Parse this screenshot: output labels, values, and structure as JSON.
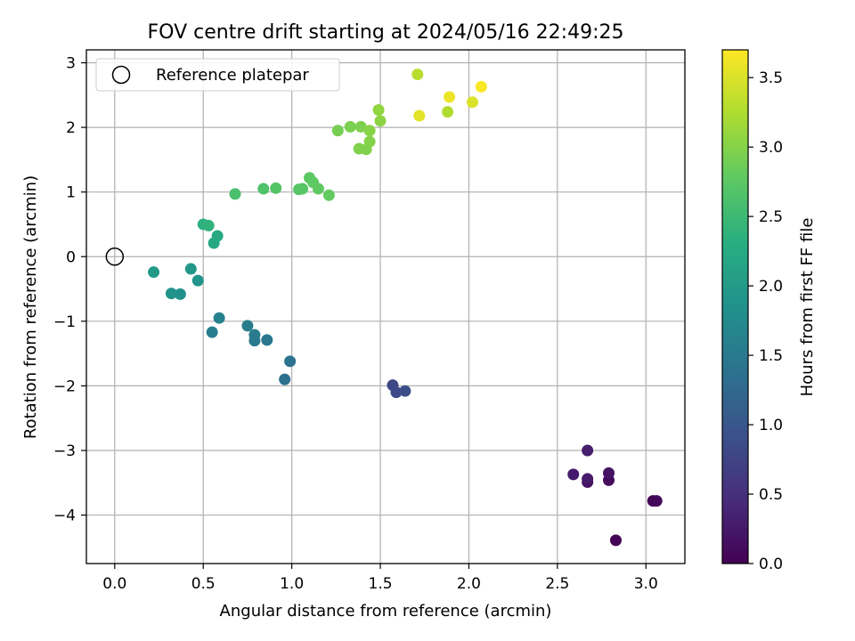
{
  "chart_data": {
    "type": "scatter",
    "title": "FOV centre drift starting at 2024/05/16 22:49:25",
    "xlabel": "Angular distance from reference (arcmin)",
    "ylabel": "Rotation from reference (arcmin)",
    "xlim": [
      -0.16,
      3.22
    ],
    "ylim": [
      -4.75,
      3.2
    ],
    "xticks": [
      0.0,
      0.5,
      1.0,
      1.5,
      2.0,
      2.5,
      3.0
    ],
    "xtick_labels": [
      "0.0",
      "0.5",
      "1.0",
      "1.5",
      "2.0",
      "2.5",
      "3.0"
    ],
    "yticks": [
      3,
      2,
      1,
      0,
      -1,
      -2,
      -3,
      -4
    ],
    "ytick_labels": [
      "3",
      "2",
      "1",
      "0",
      "−1",
      "−2",
      "−3",
      "−4"
    ],
    "grid": true,
    "legend": {
      "placement": "top-left",
      "entries": [
        "Reference platepar"
      ]
    },
    "reference_point": {
      "x": 0.0,
      "y": 0.0
    },
    "colorbar": {
      "label": "Hours from first FF file",
      "colormap": "viridis",
      "range": [
        0.0,
        3.7
      ],
      "ticks": [
        0.0,
        0.5,
        1.0,
        1.5,
        2.0,
        2.5,
        3.0,
        3.5
      ],
      "tick_labels": [
        "0.0",
        "0.5",
        "1.0",
        "1.5",
        "2.0",
        "2.5",
        "3.0",
        "3.5"
      ]
    },
    "points": [
      {
        "x": 2.83,
        "y": -4.39,
        "c": 0.02
      },
      {
        "x": 3.04,
        "y": -3.78,
        "c": 0.05
      },
      {
        "x": 3.06,
        "y": -3.78,
        "c": 0.07
      },
      {
        "x": 2.79,
        "y": -3.46,
        "c": 0.12
      },
      {
        "x": 2.67,
        "y": -3.49,
        "c": 0.17
      },
      {
        "x": 2.79,
        "y": -3.35,
        "c": 0.2
      },
      {
        "x": 2.67,
        "y": -3.44,
        "c": 0.25
      },
      {
        "x": 2.59,
        "y": -3.37,
        "c": 0.27
      },
      {
        "x": 2.67,
        "y": -3.0,
        "c": 0.3
      },
      {
        "x": 1.57,
        "y": -1.99,
        "c": 0.78
      },
      {
        "x": 1.59,
        "y": -2.1,
        "c": 0.83
      },
      {
        "x": 1.64,
        "y": -2.08,
        "c": 0.88
      },
      {
        "x": 0.96,
        "y": -1.9,
        "c": 1.35
      },
      {
        "x": 0.99,
        "y": -1.62,
        "c": 1.4
      },
      {
        "x": 0.86,
        "y": -1.29,
        "c": 1.45
      },
      {
        "x": 0.79,
        "y": -1.3,
        "c": 1.5
      },
      {
        "x": 0.79,
        "y": -1.21,
        "c": 1.52
      },
      {
        "x": 0.75,
        "y": -1.07,
        "c": 1.55
      },
      {
        "x": 0.55,
        "y": -1.17,
        "c": 1.58
      },
      {
        "x": 0.59,
        "y": -0.95,
        "c": 1.62
      },
      {
        "x": 0.37,
        "y": -0.58,
        "c": 1.85
      },
      {
        "x": 0.32,
        "y": -0.57,
        "c": 1.88
      },
      {
        "x": 0.47,
        "y": -0.37,
        "c": 1.9
      },
      {
        "x": 0.43,
        "y": -0.19,
        "c": 1.95
      },
      {
        "x": 0.22,
        "y": -0.24,
        "c": 2.0
      },
      {
        "x": 0.56,
        "y": 0.21,
        "c": 2.2
      },
      {
        "x": 0.58,
        "y": 0.32,
        "c": 2.25
      },
      {
        "x": 0.5,
        "y": 0.5,
        "c": 2.35
      },
      {
        "x": 0.53,
        "y": 0.48,
        "c": 2.38
      },
      {
        "x": 0.68,
        "y": 0.97,
        "c": 2.6
      },
      {
        "x": 0.84,
        "y": 1.05,
        "c": 2.65
      },
      {
        "x": 0.91,
        "y": 1.06,
        "c": 2.68
      },
      {
        "x": 1.04,
        "y": 1.04,
        "c": 2.7
      },
      {
        "x": 1.06,
        "y": 1.05,
        "c": 2.72
      },
      {
        "x": 1.1,
        "y": 1.22,
        "c": 2.75
      },
      {
        "x": 1.12,
        "y": 1.15,
        "c": 2.77
      },
      {
        "x": 1.15,
        "y": 1.05,
        "c": 2.78
      },
      {
        "x": 1.21,
        "y": 0.95,
        "c": 2.8
      },
      {
        "x": 1.26,
        "y": 1.95,
        "c": 2.92
      },
      {
        "x": 1.33,
        "y": 2.01,
        "c": 2.94
      },
      {
        "x": 1.39,
        "y": 2.01,
        "c": 2.96
      },
      {
        "x": 1.38,
        "y": 1.67,
        "c": 2.97
      },
      {
        "x": 1.42,
        "y": 1.66,
        "c": 2.98
      },
      {
        "x": 1.44,
        "y": 1.78,
        "c": 3.0
      },
      {
        "x": 1.44,
        "y": 1.95,
        "c": 3.02
      },
      {
        "x": 1.5,
        "y": 2.1,
        "c": 3.05
      },
      {
        "x": 1.49,
        "y": 2.27,
        "c": 3.07
      },
      {
        "x": 1.71,
        "y": 2.82,
        "c": 3.3
      },
      {
        "x": 1.72,
        "y": 2.18,
        "c": 3.55
      },
      {
        "x": 1.88,
        "y": 2.24,
        "c": 3.25
      },
      {
        "x": 1.89,
        "y": 2.47,
        "c": 3.6
      },
      {
        "x": 2.02,
        "y": 2.39,
        "c": 3.5
      },
      {
        "x": 2.07,
        "y": 2.63,
        "c": 3.68
      }
    ]
  }
}
